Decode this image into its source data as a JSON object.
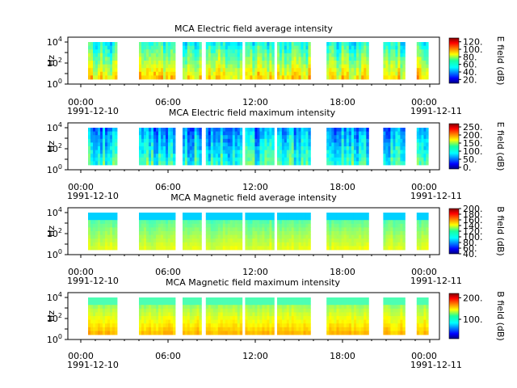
{
  "figure": {
    "panels": [
      {
        "title": "MCA  Electric field average intensity",
        "ylabel": "Hz",
        "cbar_label": "E field (dB)",
        "cbar_ticks": [
          "20.",
          "40.",
          "60.",
          "80.",
          "100.",
          "120."
        ],
        "x_tick_labels": [
          "00:00",
          "06:00",
          "12:00",
          "18:00",
          "00:00"
        ],
        "x_date_left": "1991-12-10",
        "x_date_right": "1991-12-11"
      },
      {
        "title": "MCA  Electric field maximum intensity",
        "ylabel": "Hz",
        "cbar_label": "E field (dB)",
        "cbar_ticks": [
          "0.",
          "50.",
          "100.",
          "150.",
          "200.",
          "250."
        ],
        "x_tick_labels": [
          "00:00",
          "06:00",
          "12:00",
          "18:00",
          "00:00"
        ],
        "x_date_left": "1991-12-10",
        "x_date_right": "1991-12-11"
      },
      {
        "title": "MCA  Magnetic field average intensity",
        "ylabel": "Hz",
        "cbar_label": "B field (dB)",
        "cbar_ticks": [
          "40.",
          "60.",
          "80.",
          "100.",
          "120.",
          "140.",
          "160.",
          "180.",
          "200."
        ],
        "x_tick_labels": [
          "00:00",
          "06:00",
          "12:00",
          "18:00",
          "00:00"
        ],
        "x_date_left": "1991-12-10",
        "x_date_right": "1991-12-11"
      },
      {
        "title": "MCA  Magnetic field maximum intensity",
        "ylabel": "Hz",
        "cbar_label": "B field (dB)",
        "cbar_ticks": [
          "100.",
          "200."
        ],
        "x_tick_labels": [
          "00:00",
          "06:00",
          "12:00",
          "18:00",
          "00:00"
        ],
        "x_date_left": "1991-12-10",
        "x_date_right": "1991-12-11"
      }
    ]
  },
  "chart_data": [
    {
      "type": "heatmap",
      "title": "MCA  Electric field average intensity",
      "ylabel": "Hz",
      "y_scale": "log",
      "y_ticks": [
        "10^0",
        "10^2",
        "10^4"
      ],
      "x_range": [
        "1991-12-10 00:00",
        "1991-12-11 00:00"
      ],
      "x_ticks": [
        "00:00",
        "06:00",
        "12:00",
        "18:00",
        "00:00"
      ],
      "colorbar": {
        "label": "E field (dB)",
        "ticks": [
          20,
          40,
          60,
          80,
          100,
          120
        ],
        "colormap": "jet"
      },
      "data_intervals_hours": [
        [
          0.5,
          2.5
        ],
        [
          4.0,
          6.5
        ],
        [
          7.0,
          8.3
        ],
        [
          8.6,
          11.1
        ],
        [
          11.3,
          13.3
        ],
        [
          13.5,
          15.8
        ],
        [
          16.9,
          19.8
        ],
        [
          20.8,
          22.3
        ],
        [
          23.1,
          23.9
        ]
      ]
    },
    {
      "type": "heatmap",
      "title": "MCA  Electric field maximum intensity",
      "ylabel": "Hz",
      "y_scale": "log",
      "y_ticks": [
        "10^0",
        "10^2",
        "10^4"
      ],
      "x_range": [
        "1991-12-10 00:00",
        "1991-12-11 00:00"
      ],
      "x_ticks": [
        "00:00",
        "06:00",
        "12:00",
        "18:00",
        "00:00"
      ],
      "colorbar": {
        "label": "E field (dB)",
        "ticks": [
          0,
          50,
          100,
          150,
          200,
          250
        ],
        "colormap": "jet"
      },
      "data_intervals_hours": [
        [
          0.5,
          2.5
        ],
        [
          4.0,
          6.5
        ],
        [
          7.0,
          8.3
        ],
        [
          8.6,
          11.1
        ],
        [
          11.3,
          13.3
        ],
        [
          13.5,
          15.8
        ],
        [
          16.9,
          19.8
        ],
        [
          20.8,
          22.3
        ],
        [
          23.1,
          23.9
        ]
      ]
    },
    {
      "type": "heatmap",
      "title": "MCA  Magnetic field average intensity",
      "ylabel": "Hz",
      "y_scale": "log",
      "y_ticks": [
        "10^0",
        "10^2",
        "10^4"
      ],
      "x_range": [
        "1991-12-10 00:00",
        "1991-12-11 00:00"
      ],
      "x_ticks": [
        "00:00",
        "06:00",
        "12:00",
        "18:00",
        "00:00"
      ],
      "colorbar": {
        "label": "B field (dB)",
        "ticks": [
          40,
          60,
          80,
          100,
          120,
          140,
          160,
          180,
          200
        ],
        "colormap": "jet"
      },
      "data_intervals_hours": [
        [
          0.5,
          2.5
        ],
        [
          4.0,
          6.5
        ],
        [
          7.0,
          8.3
        ],
        [
          8.6,
          11.1
        ],
        [
          11.3,
          13.3
        ],
        [
          13.5,
          15.8
        ],
        [
          16.9,
          19.8
        ],
        [
          20.8,
          22.3
        ],
        [
          23.1,
          23.9
        ]
      ]
    },
    {
      "type": "heatmap",
      "title": "MCA  Magnetic field maximum intensity",
      "ylabel": "Hz",
      "y_scale": "log",
      "y_ticks": [
        "10^0",
        "10^2",
        "10^4"
      ],
      "x_range": [
        "1991-12-10 00:00",
        "1991-12-11 00:00"
      ],
      "x_ticks": [
        "00:00",
        "06:00",
        "12:00",
        "18:00",
        "00:00"
      ],
      "colorbar": {
        "label": "B field (dB)",
        "ticks": [
          100,
          200
        ],
        "colormap": "jet"
      },
      "data_intervals_hours": [
        [
          0.5,
          2.5
        ],
        [
          4.0,
          6.5
        ],
        [
          7.0,
          8.3
        ],
        [
          8.6,
          11.1
        ],
        [
          11.3,
          13.3
        ],
        [
          13.5,
          15.8
        ],
        [
          16.9,
          19.8
        ],
        [
          20.8,
          22.3
        ],
        [
          23.1,
          23.9
        ]
      ]
    }
  ]
}
